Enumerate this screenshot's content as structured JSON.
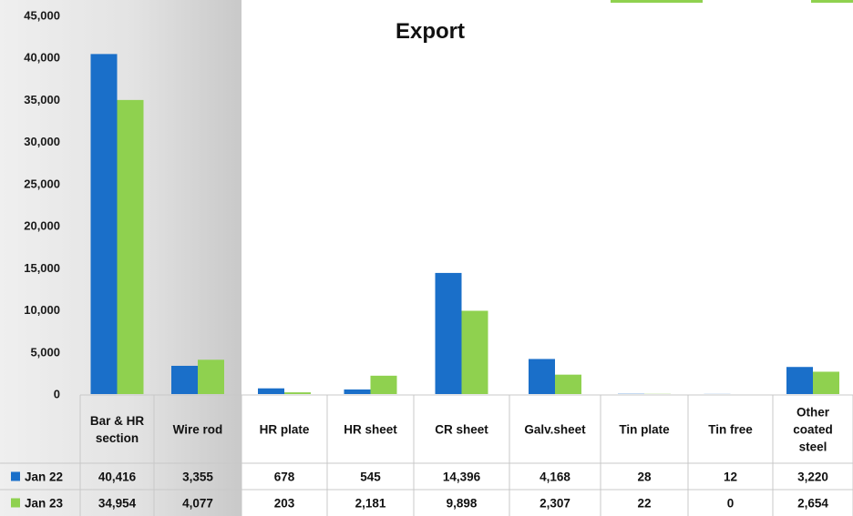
{
  "chart_data": {
    "type": "bar",
    "title": "Export",
    "categories": [
      [
        "Bar & HR",
        "section"
      ],
      [
        "Wire rod"
      ],
      [
        "HR plate"
      ],
      [
        "HR sheet"
      ],
      [
        "CR sheet"
      ],
      [
        "Galv.sheet"
      ],
      [
        "Tin plate"
      ],
      [
        "Tin free"
      ],
      [
        "Other",
        "coated",
        "steel"
      ]
    ],
    "series": [
      {
        "name": "Jan 22",
        "color": "#1a6fc9",
        "values": [
          40416,
          3355,
          678,
          545,
          14396,
          4168,
          28,
          12,
          3220
        ],
        "labels": [
          "40,416",
          "3,355",
          "678",
          "545",
          "14,396",
          "4,168",
          "28",
          "12",
          "3,220"
        ]
      },
      {
        "name": "Jan 23",
        "color": "#8fd14f",
        "values": [
          34954,
          4077,
          203,
          2181,
          9898,
          2307,
          22,
          0,
          2654
        ],
        "labels": [
          "34,954",
          "4,077",
          "203",
          "2,181",
          "9,898",
          "2,307",
          "22",
          "0",
          "2,654"
        ]
      }
    ],
    "ylim": [
      0,
      45000
    ],
    "yticks": [
      0,
      5000,
      10000,
      15000,
      20000,
      25000,
      30000,
      35000,
      40000,
      45000
    ],
    "ytick_labels": [
      "0",
      "5,000",
      "10,000",
      "15,000",
      "20,000",
      "25,000",
      "30,000",
      "35,000",
      "40,000",
      "45,000"
    ],
    "xlabel": "",
    "ylabel": "",
    "legend": "data-table",
    "grid": false
  }
}
